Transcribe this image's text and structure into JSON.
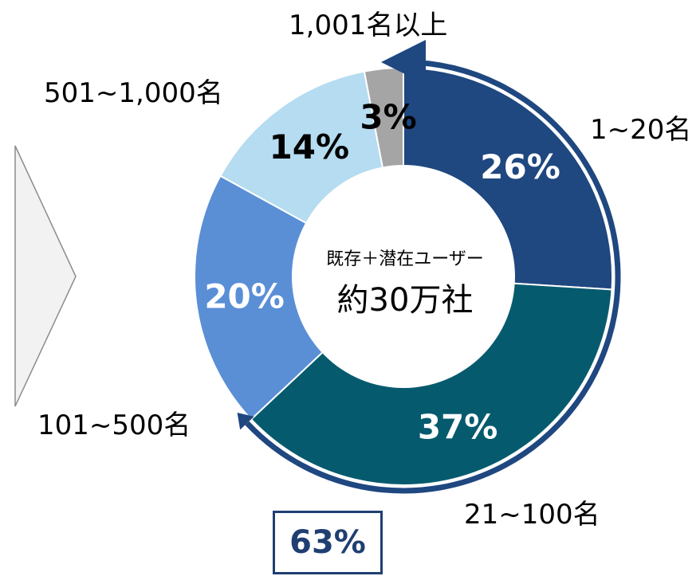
{
  "chart_data": {
    "type": "pie",
    "donut": true,
    "center_text": {
      "line1": "既存＋潜在ユーザー",
      "line2": "約30万社"
    },
    "slices": [
      {
        "category": "1~20名",
        "value": 26,
        "value_label": "26%",
        "color": "#1f4780",
        "label_color": "#ffffff"
      },
      {
        "category": "21~100名",
        "value": 37,
        "value_label": "37%",
        "color": "#065a6e",
        "label_color": "#ffffff"
      },
      {
        "category": "101~500名",
        "value": 20,
        "value_label": "20%",
        "color": "#5a8fd6",
        "label_color": "#ffffff"
      },
      {
        "category": "501~1,000名",
        "value": 14,
        "value_label": "14%",
        "color": "#b5dcf0",
        "label_color": "#000000"
      },
      {
        "category": "1,001名以上",
        "value": 3,
        "value_label": "3%",
        "color": "#a5a5a5",
        "label_color": "#000000"
      }
    ],
    "highlight": {
      "label": "63%",
      "covers": [
        "1~20名",
        "21~100名"
      ],
      "color": "#1f4780"
    }
  },
  "decor": {
    "arrow_color": "#f2f2f2",
    "arrow_border": "#8c8c8c"
  }
}
